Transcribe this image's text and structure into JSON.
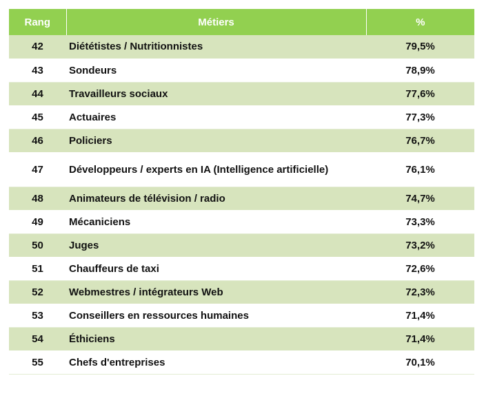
{
  "table": {
    "headers": {
      "rank": "Rang",
      "job": "Métiers",
      "pct": "%"
    },
    "rows": [
      {
        "rank": "42",
        "job": "Diététistes / Nutritionnistes",
        "pct": "79,5%"
      },
      {
        "rank": "43",
        "job": "Sondeurs",
        "pct": "78,9%"
      },
      {
        "rank": "44",
        "job": "Travailleurs sociaux",
        "pct": "77,6%"
      },
      {
        "rank": "45",
        "job": "Actuaires",
        "pct": "77,3%"
      },
      {
        "rank": "46",
        "job": "Policiers",
        "pct": "76,7%"
      },
      {
        "rank": "47",
        "job": "Développeurs / experts en IA (Intelligence artificielle)",
        "pct": "76,1%"
      },
      {
        "rank": "48",
        "job": "Animateurs de télévision / radio",
        "pct": "74,7%"
      },
      {
        "rank": "49",
        "job": "Mécaniciens",
        "pct": "73,3%"
      },
      {
        "rank": "50",
        "job": "Juges",
        "pct": "73,2%"
      },
      {
        "rank": "51",
        "job": "Chauffeurs de taxi",
        "pct": "72,6%"
      },
      {
        "rank": "52",
        "job": "Webmestres / intégrateurs Web",
        "pct": "72,3%"
      },
      {
        "rank": "53",
        "job": "Conseillers en ressources humaines",
        "pct": "71,4%"
      },
      {
        "rank": "54",
        "job": "Éthiciens",
        "pct": "71,4%"
      },
      {
        "rank": "55",
        "job": "Chefs d'entreprises",
        "pct": "70,1%"
      }
    ]
  },
  "colors": {
    "header_bg": "#92d050",
    "band_bg": "#d7e4bd"
  }
}
